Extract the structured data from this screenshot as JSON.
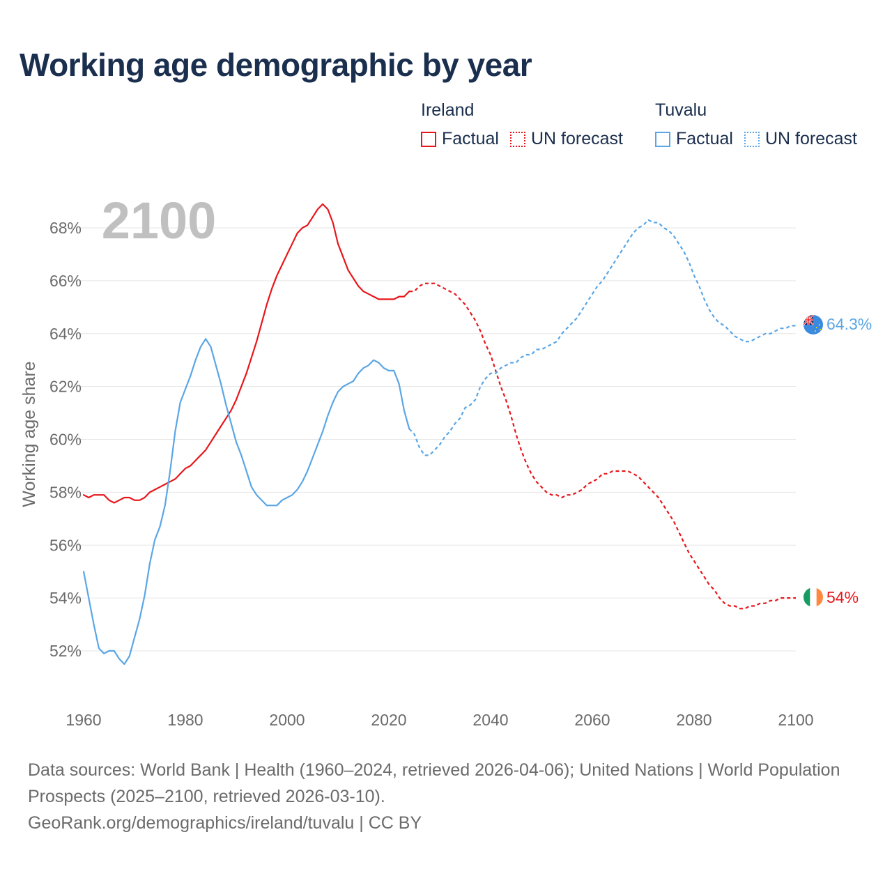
{
  "title": "Working age demographic by year",
  "legend": {
    "ireland": {
      "name": "Ireland",
      "factual": "Factual",
      "forecast": "UN forecast"
    },
    "tuvalu": {
      "name": "Tuvalu",
      "factual": "Factual",
      "forecast": "UN forecast"
    }
  },
  "footer": {
    "sources": "Data sources: World Bank | Health (1960–2024, retrieved 2026-04-06); United Nations | World Population Prospects (2025–2100, retrieved 2026-03-10).",
    "credit": "GeoRank.org/demographics/ireland/tuvalu | CC BY"
  },
  "chart_data": {
    "type": "line",
    "title": "Working age demographic by year",
    "year_label": "2100",
    "xlabel": "",
    "ylabel": "Working age share",
    "xlim": [
      1960,
      2100
    ],
    "ylim": [
      50.5,
      69.5
    ],
    "x_ticks": [
      1960,
      1980,
      2000,
      2020,
      2040,
      2060,
      2080,
      2100
    ],
    "y_ticks": [
      52,
      54,
      56,
      58,
      60,
      62,
      64,
      66,
      68
    ],
    "y_tick_labels": [
      "52%",
      "54%",
      "56%",
      "58%",
      "60%",
      "62%",
      "64%",
      "66%",
      "68%"
    ],
    "grid": true,
    "legend_position": "top-right",
    "colors": {
      "ireland": "#e8161b",
      "tuvalu": "#5aa6e6"
    },
    "series": [
      {
        "name": "Ireland",
        "color": "#e8161b",
        "end_label": "54%",
        "factual": [
          [
            1960,
            57.9
          ],
          [
            1961,
            57.8
          ],
          [
            1962,
            57.9
          ],
          [
            1963,
            57.9
          ],
          [
            1964,
            57.9
          ],
          [
            1965,
            57.7
          ],
          [
            1966,
            57.6
          ],
          [
            1967,
            57.7
          ],
          [
            1968,
            57.8
          ],
          [
            1969,
            57.8
          ],
          [
            1970,
            57.7
          ],
          [
            1971,
            57.7
          ],
          [
            1972,
            57.8
          ],
          [
            1973,
            58.0
          ],
          [
            1974,
            58.1
          ],
          [
            1975,
            58.2
          ],
          [
            1976,
            58.3
          ],
          [
            1977,
            58.4
          ],
          [
            1978,
            58.5
          ],
          [
            1979,
            58.7
          ],
          [
            1980,
            58.9
          ],
          [
            1981,
            59.0
          ],
          [
            1982,
            59.2
          ],
          [
            1983,
            59.4
          ],
          [
            1984,
            59.6
          ],
          [
            1985,
            59.9
          ],
          [
            1986,
            60.2
          ],
          [
            1987,
            60.5
          ],
          [
            1988,
            60.8
          ],
          [
            1989,
            61.1
          ],
          [
            1990,
            61.5
          ],
          [
            1991,
            62.0
          ],
          [
            1992,
            62.5
          ],
          [
            1993,
            63.1
          ],
          [
            1994,
            63.7
          ],
          [
            1995,
            64.4
          ],
          [
            1996,
            65.1
          ],
          [
            1997,
            65.7
          ],
          [
            1998,
            66.2
          ],
          [
            1999,
            66.6
          ],
          [
            2000,
            67.0
          ],
          [
            2001,
            67.4
          ],
          [
            2002,
            67.8
          ],
          [
            2003,
            68.0
          ],
          [
            2004,
            68.1
          ],
          [
            2005,
            68.4
          ],
          [
            2006,
            68.7
          ],
          [
            2007,
            68.9
          ],
          [
            2008,
            68.7
          ],
          [
            2009,
            68.2
          ],
          [
            2010,
            67.4
          ],
          [
            2011,
            66.9
          ],
          [
            2012,
            66.4
          ],
          [
            2013,
            66.1
          ],
          [
            2014,
            65.8
          ],
          [
            2015,
            65.6
          ],
          [
            2016,
            65.5
          ],
          [
            2017,
            65.4
          ],
          [
            2018,
            65.3
          ],
          [
            2019,
            65.3
          ],
          [
            2020,
            65.3
          ],
          [
            2021,
            65.3
          ],
          [
            2022,
            65.4
          ],
          [
            2023,
            65.4
          ],
          [
            2024,
            65.6
          ]
        ],
        "forecast": [
          [
            2024,
            65.6
          ],
          [
            2025,
            65.6
          ],
          [
            2026,
            65.8
          ],
          [
            2027,
            65.9
          ],
          [
            2028,
            65.9
          ],
          [
            2029,
            65.9
          ],
          [
            2030,
            65.8
          ],
          [
            2031,
            65.7
          ],
          [
            2032,
            65.6
          ],
          [
            2033,
            65.5
          ],
          [
            2034,
            65.3
          ],
          [
            2035,
            65.1
          ],
          [
            2036,
            64.8
          ],
          [
            2037,
            64.5
          ],
          [
            2038,
            64.1
          ],
          [
            2039,
            63.6
          ],
          [
            2040,
            63.2
          ],
          [
            2041,
            62.6
          ],
          [
            2042,
            62.0
          ],
          [
            2043,
            61.5
          ],
          [
            2044,
            60.9
          ],
          [
            2045,
            60.2
          ],
          [
            2046,
            59.6
          ],
          [
            2047,
            59.1
          ],
          [
            2048,
            58.7
          ],
          [
            2049,
            58.4
          ],
          [
            2050,
            58.2
          ],
          [
            2051,
            58.0
          ],
          [
            2052,
            57.9
          ],
          [
            2053,
            57.9
          ],
          [
            2054,
            57.8
          ],
          [
            2055,
            57.9
          ],
          [
            2056,
            57.9
          ],
          [
            2057,
            58.0
          ],
          [
            2058,
            58.1
          ],
          [
            2059,
            58.3
          ],
          [
            2060,
            58.4
          ],
          [
            2061,
            58.5
          ],
          [
            2062,
            58.7
          ],
          [
            2063,
            58.7
          ],
          [
            2064,
            58.8
          ],
          [
            2065,
            58.8
          ],
          [
            2066,
            58.8
          ],
          [
            2067,
            58.8
          ],
          [
            2068,
            58.7
          ],
          [
            2069,
            58.6
          ],
          [
            2070,
            58.4
          ],
          [
            2071,
            58.2
          ],
          [
            2072,
            58.0
          ],
          [
            2073,
            57.8
          ],
          [
            2074,
            57.5
          ],
          [
            2075,
            57.2
          ],
          [
            2076,
            56.9
          ],
          [
            2077,
            56.5
          ],
          [
            2078,
            56.1
          ],
          [
            2079,
            55.7
          ],
          [
            2080,
            55.4
          ],
          [
            2081,
            55.1
          ],
          [
            2082,
            54.8
          ],
          [
            2083,
            54.5
          ],
          [
            2084,
            54.3
          ],
          [
            2085,
            54.0
          ],
          [
            2086,
            53.8
          ],
          [
            2087,
            53.7
          ],
          [
            2088,
            53.7
          ],
          [
            2089,
            53.6
          ],
          [
            2090,
            53.6
          ],
          [
            2091,
            53.7
          ],
          [
            2092,
            53.7
          ],
          [
            2093,
            53.8
          ],
          [
            2094,
            53.8
          ],
          [
            2095,
            53.9
          ],
          [
            2096,
            53.9
          ],
          [
            2097,
            54.0
          ],
          [
            2098,
            54.0
          ],
          [
            2099,
            54.0
          ],
          [
            2100,
            54.0
          ]
        ]
      },
      {
        "name": "Tuvalu",
        "color": "#5aa6e6",
        "end_label": "64.3%",
        "factual": [
          [
            1960,
            55.0
          ],
          [
            1961,
            54.0
          ],
          [
            1962,
            53.0
          ],
          [
            1963,
            52.1
          ],
          [
            1964,
            51.9
          ],
          [
            1965,
            52.0
          ],
          [
            1966,
            52.0
          ],
          [
            1967,
            51.7
          ],
          [
            1968,
            51.5
          ],
          [
            1969,
            51.8
          ],
          [
            1970,
            52.5
          ],
          [
            1971,
            53.2
          ],
          [
            1972,
            54.1
          ],
          [
            1973,
            55.3
          ],
          [
            1974,
            56.2
          ],
          [
            1975,
            56.7
          ],
          [
            1976,
            57.5
          ],
          [
            1977,
            58.8
          ],
          [
            1978,
            60.3
          ],
          [
            1979,
            61.4
          ],
          [
            1980,
            61.9
          ],
          [
            1981,
            62.4
          ],
          [
            1982,
            63.0
          ],
          [
            1983,
            63.5
          ],
          [
            1984,
            63.8
          ],
          [
            1985,
            63.5
          ],
          [
            1986,
            62.8
          ],
          [
            1987,
            62.1
          ],
          [
            1988,
            61.3
          ],
          [
            1989,
            60.6
          ],
          [
            1990,
            59.9
          ],
          [
            1991,
            59.4
          ],
          [
            1992,
            58.8
          ],
          [
            1993,
            58.2
          ],
          [
            1994,
            57.9
          ],
          [
            1995,
            57.7
          ],
          [
            1996,
            57.5
          ],
          [
            1997,
            57.5
          ],
          [
            1998,
            57.5
          ],
          [
            1999,
            57.7
          ],
          [
            2000,
            57.8
          ],
          [
            2001,
            57.9
          ],
          [
            2002,
            58.1
          ],
          [
            2003,
            58.4
          ],
          [
            2004,
            58.8
          ],
          [
            2005,
            59.3
          ],
          [
            2006,
            59.8
          ],
          [
            2007,
            60.3
          ],
          [
            2008,
            60.9
          ],
          [
            2009,
            61.4
          ],
          [
            2010,
            61.8
          ],
          [
            2011,
            62.0
          ],
          [
            2012,
            62.1
          ],
          [
            2013,
            62.2
          ],
          [
            2014,
            62.5
          ],
          [
            2015,
            62.7
          ],
          [
            2016,
            62.8
          ],
          [
            2017,
            63.0
          ],
          [
            2018,
            62.9
          ],
          [
            2019,
            62.7
          ],
          [
            2020,
            62.6
          ],
          [
            2021,
            62.6
          ],
          [
            2022,
            62.1
          ],
          [
            2023,
            61.1
          ],
          [
            2024,
            60.4
          ]
        ],
        "forecast": [
          [
            2024,
            60.4
          ],
          [
            2025,
            60.2
          ],
          [
            2026,
            59.7
          ],
          [
            2027,
            59.4
          ],
          [
            2028,
            59.4
          ],
          [
            2029,
            59.6
          ],
          [
            2030,
            59.8
          ],
          [
            2031,
            60.1
          ],
          [
            2032,
            60.3
          ],
          [
            2033,
            60.6
          ],
          [
            2034,
            60.8
          ],
          [
            2035,
            61.2
          ],
          [
            2036,
            61.3
          ],
          [
            2037,
            61.5
          ],
          [
            2038,
            62.0
          ],
          [
            2039,
            62.3
          ],
          [
            2040,
            62.5
          ],
          [
            2041,
            62.5
          ],
          [
            2042,
            62.7
          ],
          [
            2043,
            62.8
          ],
          [
            2044,
            62.9
          ],
          [
            2045,
            62.9
          ],
          [
            2046,
            63.1
          ],
          [
            2047,
            63.2
          ],
          [
            2048,
            63.2
          ],
          [
            2049,
            63.4
          ],
          [
            2050,
            63.4
          ],
          [
            2051,
            63.5
          ],
          [
            2052,
            63.6
          ],
          [
            2053,
            63.7
          ],
          [
            2054,
            64.0
          ],
          [
            2055,
            64.2
          ],
          [
            2056,
            64.4
          ],
          [
            2057,
            64.6
          ],
          [
            2058,
            64.9
          ],
          [
            2059,
            65.2
          ],
          [
            2060,
            65.5
          ],
          [
            2061,
            65.8
          ],
          [
            2062,
            66.0
          ],
          [
            2063,
            66.3
          ],
          [
            2064,
            66.6
          ],
          [
            2065,
            66.9
          ],
          [
            2066,
            67.2
          ],
          [
            2067,
            67.5
          ],
          [
            2068,
            67.8
          ],
          [
            2069,
            68.0
          ],
          [
            2070,
            68.1
          ],
          [
            2071,
            68.3
          ],
          [
            2072,
            68.2
          ],
          [
            2073,
            68.2
          ],
          [
            2074,
            68.0
          ],
          [
            2075,
            67.9
          ],
          [
            2076,
            67.7
          ],
          [
            2077,
            67.4
          ],
          [
            2078,
            67.1
          ],
          [
            2079,
            66.7
          ],
          [
            2080,
            66.2
          ],
          [
            2081,
            65.8
          ],
          [
            2082,
            65.3
          ],
          [
            2083,
            64.9
          ],
          [
            2084,
            64.6
          ],
          [
            2085,
            64.4
          ],
          [
            2086,
            64.3
          ],
          [
            2087,
            64.1
          ],
          [
            2088,
            63.9
          ],
          [
            2089,
            63.8
          ],
          [
            2090,
            63.7
          ],
          [
            2091,
            63.7
          ],
          [
            2092,
            63.8
          ],
          [
            2093,
            63.9
          ],
          [
            2094,
            64.0
          ],
          [
            2095,
            64.0
          ],
          [
            2096,
            64.1
          ],
          [
            2097,
            64.2
          ],
          [
            2098,
            64.2
          ],
          [
            2099,
            64.3
          ],
          [
            2100,
            64.3
          ]
        ]
      }
    ]
  }
}
